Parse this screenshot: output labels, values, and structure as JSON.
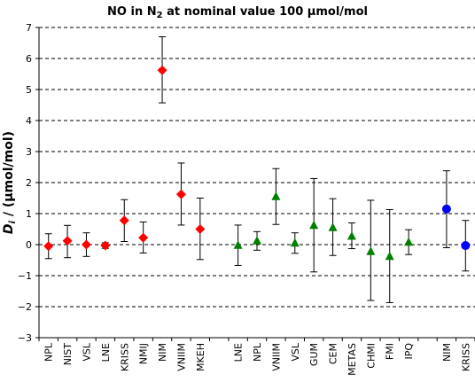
{
  "chart_data": {
    "type": "scatter",
    "title": {
      "prefix": "NO in N",
      "subscript": "2",
      "suffix": " at nominal value 100 µmol/mol"
    },
    "ylabel": {
      "italic": "D",
      "sub": "i",
      "rest": " / (µmol/mol)"
    },
    "ylim": [
      -3,
      7
    ],
    "yticks": [
      -3,
      -2,
      -1,
      0,
      1,
      2,
      3,
      4,
      5,
      6,
      7
    ],
    "gridlines": "horizontal dashed",
    "categories": [
      "NPL",
      "NIST",
      "VSL",
      "LNE",
      "KRISS",
      "NMIJ",
      "NIM",
      "VNIIM",
      "MKEH",
      "",
      "LNE",
      "NPL",
      "VNIIM",
      "VSL",
      "GUM",
      "CEM",
      "METAS",
      "CHMI",
      "FMI",
      "IPQ",
      "",
      "NIM",
      "KRISS"
    ],
    "series": [
      {
        "marker": "diamond",
        "color": "#ff0000",
        "points": [
          {
            "label": "NPL",
            "y": -0.05,
            "lo": -0.45,
            "hi": 0.35
          },
          {
            "label": "NIST",
            "y": 0.12,
            "lo": -0.42,
            "hi": 0.62
          },
          {
            "label": "VSL",
            "y": 0.0,
            "lo": -0.38,
            "hi": 0.38
          },
          {
            "label": "LNE",
            "y": -0.03,
            "lo": -0.12,
            "hi": 0.06
          },
          {
            "label": "KRISS",
            "y": 0.78,
            "lo": 0.1,
            "hi": 1.45
          },
          {
            "label": "NMIJ",
            "y": 0.22,
            "lo": -0.27,
            "hi": 0.73
          },
          {
            "label": "NIM",
            "y": 5.62,
            "lo": 4.57,
            "hi": 6.7
          },
          {
            "label": "VNIIM",
            "y": 1.62,
            "lo": 0.63,
            "hi": 2.63
          },
          {
            "label": "MKEH",
            "y": 0.5,
            "lo": -0.48,
            "hi": 1.5
          }
        ]
      },
      {
        "marker": "triangle",
        "color": "#008000",
        "points": [
          {
            "label": "LNE",
            "y": -0.02,
            "lo": -0.67,
            "hi": 0.63
          },
          {
            "label": "NPL",
            "y": 0.12,
            "lo": -0.18,
            "hi": 0.42
          },
          {
            "label": "VNIIM",
            "y": 1.55,
            "lo": 0.65,
            "hi": 2.45
          },
          {
            "label": "VSL",
            "y": 0.05,
            "lo": -0.28,
            "hi": 0.38
          },
          {
            "label": "GUM",
            "y": 0.62,
            "lo": -0.88,
            "hi": 2.13
          },
          {
            "label": "CEM",
            "y": 0.55,
            "lo": -0.35,
            "hi": 1.48
          },
          {
            "label": "METAS",
            "y": 0.27,
            "lo": -0.13,
            "hi": 0.7
          },
          {
            "label": "CHMI",
            "y": -0.22,
            "lo": -1.8,
            "hi": 1.43
          },
          {
            "label": "FMI",
            "y": -0.38,
            "lo": -1.87,
            "hi": 1.13
          },
          {
            "label": "IPQ",
            "y": 0.08,
            "lo": -0.32,
            "hi": 0.48
          }
        ]
      },
      {
        "marker": "circle",
        "color": "#0000ff",
        "points": [
          {
            "label": "NIM",
            "y": 1.15,
            "lo": -0.1,
            "hi": 2.38
          },
          {
            "label": "KRISS",
            "y": -0.03,
            "lo": -0.85,
            "hi": 0.78
          }
        ]
      }
    ]
  }
}
